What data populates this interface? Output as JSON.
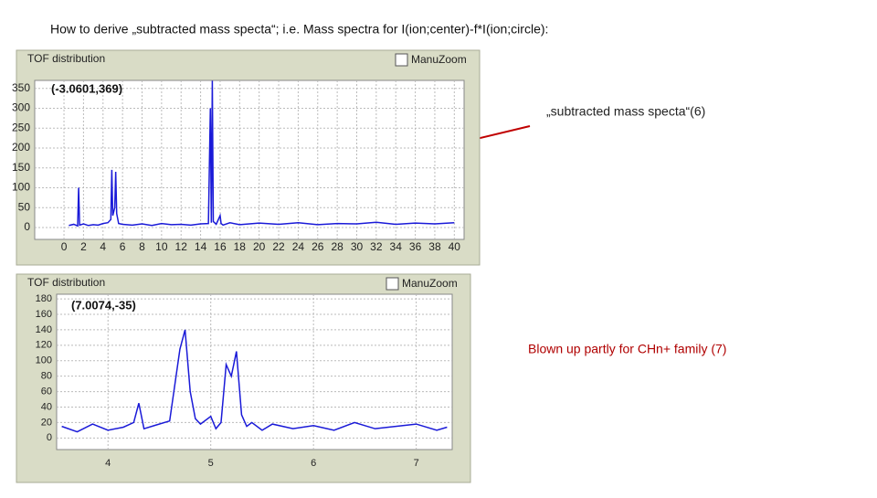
{
  "title": "How to derive „subtracted mass specta“; i.e. Mass spectra for I(ion;center)-f*I(ion;circle):",
  "annotations": [
    "„subtracted mass specta“(6)",
    "Blown up partly for CHn+ family (7)"
  ],
  "chart_data": [
    {
      "type": "line",
      "title": "TOF distribution",
      "checkbox": "ManuZoom",
      "readout": "(-3.0601,369)",
      "x": [
        0.5,
        1,
        1.4,
        1.5,
        1.6,
        2,
        2.5,
        3,
        3.5,
        4,
        4.5,
        4.8,
        4.9,
        5.0,
        5.2,
        5.3,
        5.4,
        5.6,
        6,
        7,
        8,
        9,
        10,
        11,
        12,
        13,
        14,
        14.8,
        15,
        15.1,
        15.2,
        15.3,
        15.6,
        16,
        16.1,
        16.3,
        17,
        18,
        19,
        20,
        22,
        24,
        26,
        28,
        30,
        32,
        34,
        36,
        38,
        40
      ],
      "series": [
        {
          "color": "#1a1ad8",
          "values": [
            5,
            8,
            4,
            100,
            6,
            9,
            5,
            7,
            6,
            10,
            12,
            20,
            145,
            30,
            50,
            140,
            35,
            10,
            8,
            6,
            9,
            5,
            10,
            7,
            8,
            6,
            9,
            10,
            300,
            12,
            369,
            15,
            8,
            30,
            10,
            6,
            12,
            7,
            9,
            11,
            8,
            12,
            7,
            10,
            9,
            13,
            8,
            11,
            9,
            12
          ]
        }
      ],
      "xlim": [
        -3,
        41
      ],
      "xticks": [
        0,
        2,
        4,
        6,
        8,
        10,
        12,
        14,
        16,
        18,
        20,
        22,
        24,
        26,
        28,
        30,
        32,
        34,
        36,
        38,
        40
      ],
      "ylim": [
        -30,
        370
      ],
      "yticks": [
        0,
        50,
        100,
        150,
        200,
        250,
        300,
        350
      ],
      "grid": true
    },
    {
      "type": "line",
      "title": "TOF distribution",
      "checkbox": "ManuZoom",
      "readout": "(7.0074,-35)",
      "x": [
        3.55,
        3.7,
        3.85,
        4,
        4.15,
        4.25,
        4.3,
        4.35,
        4.45,
        4.6,
        4.7,
        4.75,
        4.8,
        4.85,
        4.9,
        5.0,
        5.05,
        5.1,
        5.15,
        5.2,
        5.25,
        5.3,
        5.35,
        5.4,
        5.5,
        5.6,
        5.8,
        6,
        6.2,
        6.4,
        6.6,
        6.8,
        7,
        7.2,
        7.3
      ],
      "series": [
        {
          "color": "#1a1ad8",
          "values": [
            15,
            8,
            18,
            10,
            14,
            20,
            45,
            12,
            16,
            22,
            115,
            140,
            60,
            25,
            18,
            28,
            12,
            20,
            95,
            80,
            112,
            30,
            15,
            20,
            10,
            18,
            12,
            16,
            10,
            20,
            12,
            15,
            18,
            10,
            14
          ]
        }
      ],
      "xlim": [
        3.5,
        7.35
      ],
      "xticks": [
        4,
        5,
        6,
        7
      ],
      "ylim": [
        -15,
        186
      ],
      "yticks": [
        0,
        20,
        40,
        60,
        80,
        100,
        120,
        140,
        160,
        180
      ],
      "grid": true
    }
  ]
}
